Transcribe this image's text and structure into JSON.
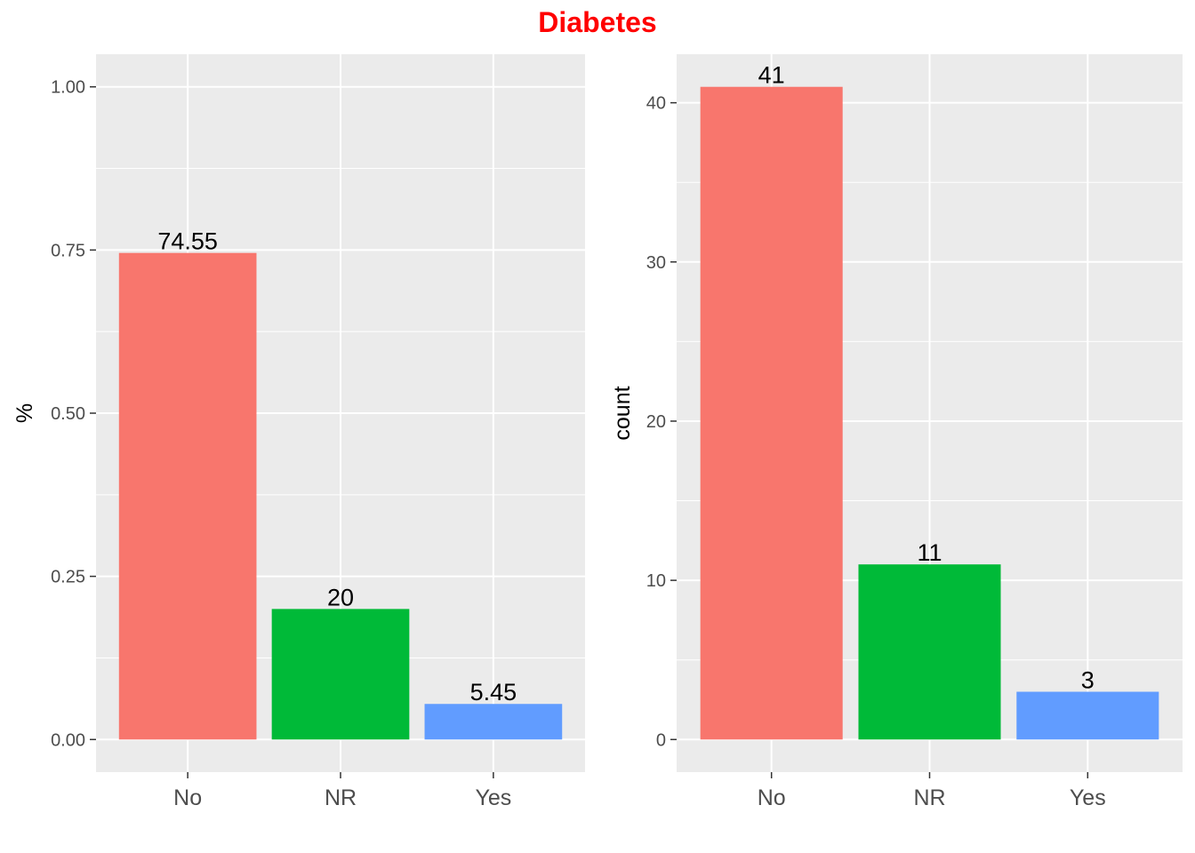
{
  "figure": {
    "title": "Diabetes"
  },
  "chart_data": [
    {
      "type": "bar",
      "categories": [
        "No",
        "NR",
        "Yes"
      ],
      "values": [
        0.7455,
        0.2,
        0.0545
      ],
      "data_labels": [
        "74.55",
        "20",
        "5.45"
      ],
      "ylabel": "%",
      "xlabel": "",
      "ylim": [
        -0.05,
        1.05
      ],
      "yticks": [
        0,
        0.25,
        0.5,
        0.75,
        1.0
      ],
      "ytick_labels": [
        "0.00",
        "0.25",
        "0.50",
        "0.75",
        "1.00"
      ],
      "colors": [
        "#F8766D",
        "#00BA38",
        "#619CFF"
      ],
      "grid": true
    },
    {
      "type": "bar",
      "categories": [
        "No",
        "NR",
        "Yes"
      ],
      "values": [
        41,
        11,
        3
      ],
      "data_labels": [
        "41",
        "11",
        "3"
      ],
      "ylabel": "count",
      "xlabel": "",
      "ylim": [
        -2.05,
        43.05
      ],
      "yticks": [
        0,
        10,
        20,
        30,
        40
      ],
      "ytick_labels": [
        "0",
        "10",
        "20",
        "30",
        "40"
      ],
      "colors": [
        "#F8766D",
        "#00BA38",
        "#619CFF"
      ],
      "grid": true
    }
  ]
}
